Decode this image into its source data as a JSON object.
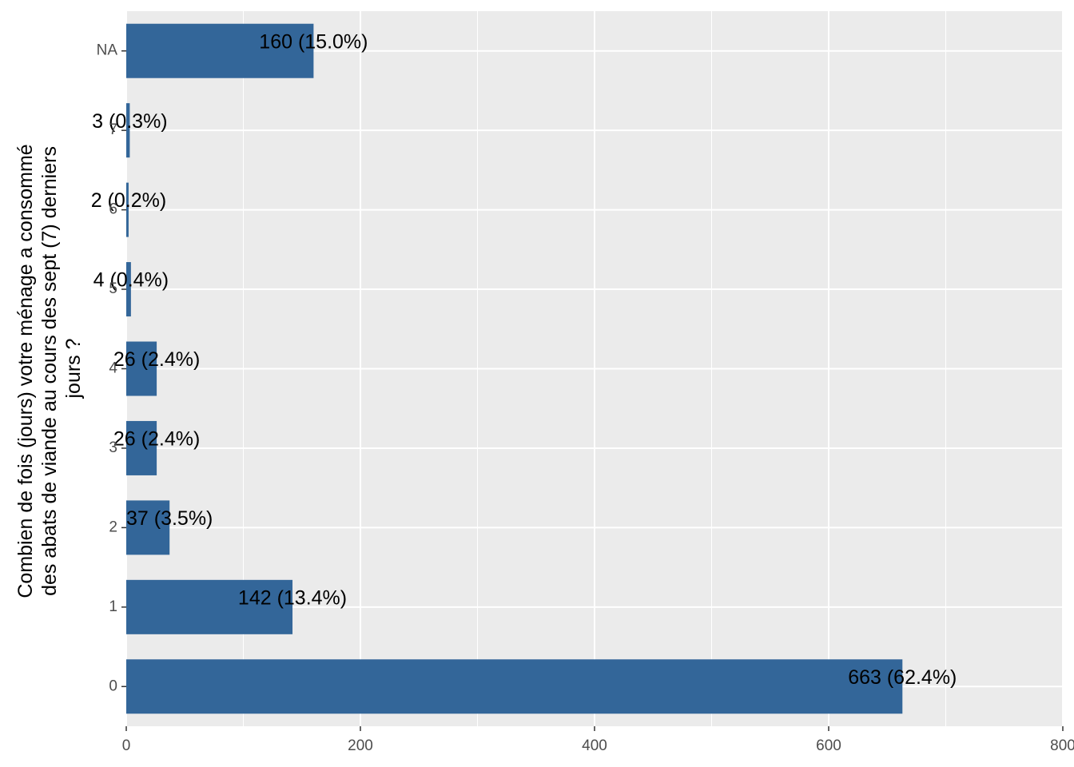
{
  "chart_data": {
    "type": "bar",
    "orientation": "horizontal",
    "categories": [
      "0",
      "1",
      "2",
      "3",
      "4",
      "5",
      "6",
      "7",
      "NA"
    ],
    "values": [
      663,
      142,
      37,
      26,
      26,
      4,
      2,
      3,
      160
    ],
    "data_labels": [
      "663 (62.4%)",
      "142 (13.4%)",
      "37 (3.5%)",
      "26 (2.4%)",
      "26 (2.4%)",
      "4 (0.4%)",
      "2 (0.2%)",
      "3 (0.3%)",
      "160 (15.0%)"
    ],
    "xlim": [
      0,
      800
    ],
    "x_ticks": [
      "0",
      "200",
      "400",
      "600",
      "800"
    ],
    "ylabel_lines": [
      "Combien de fois (jours) votre ménage a consommé",
      "des abats de viande au cours des sept (7) derniers",
      "jours ?"
    ],
    "xlabel": "",
    "title": "",
    "grid": true,
    "legend": "none",
    "bar_color": "#336699",
    "panel_background": "#ebebeb",
    "grid_color": "#ffffff"
  }
}
